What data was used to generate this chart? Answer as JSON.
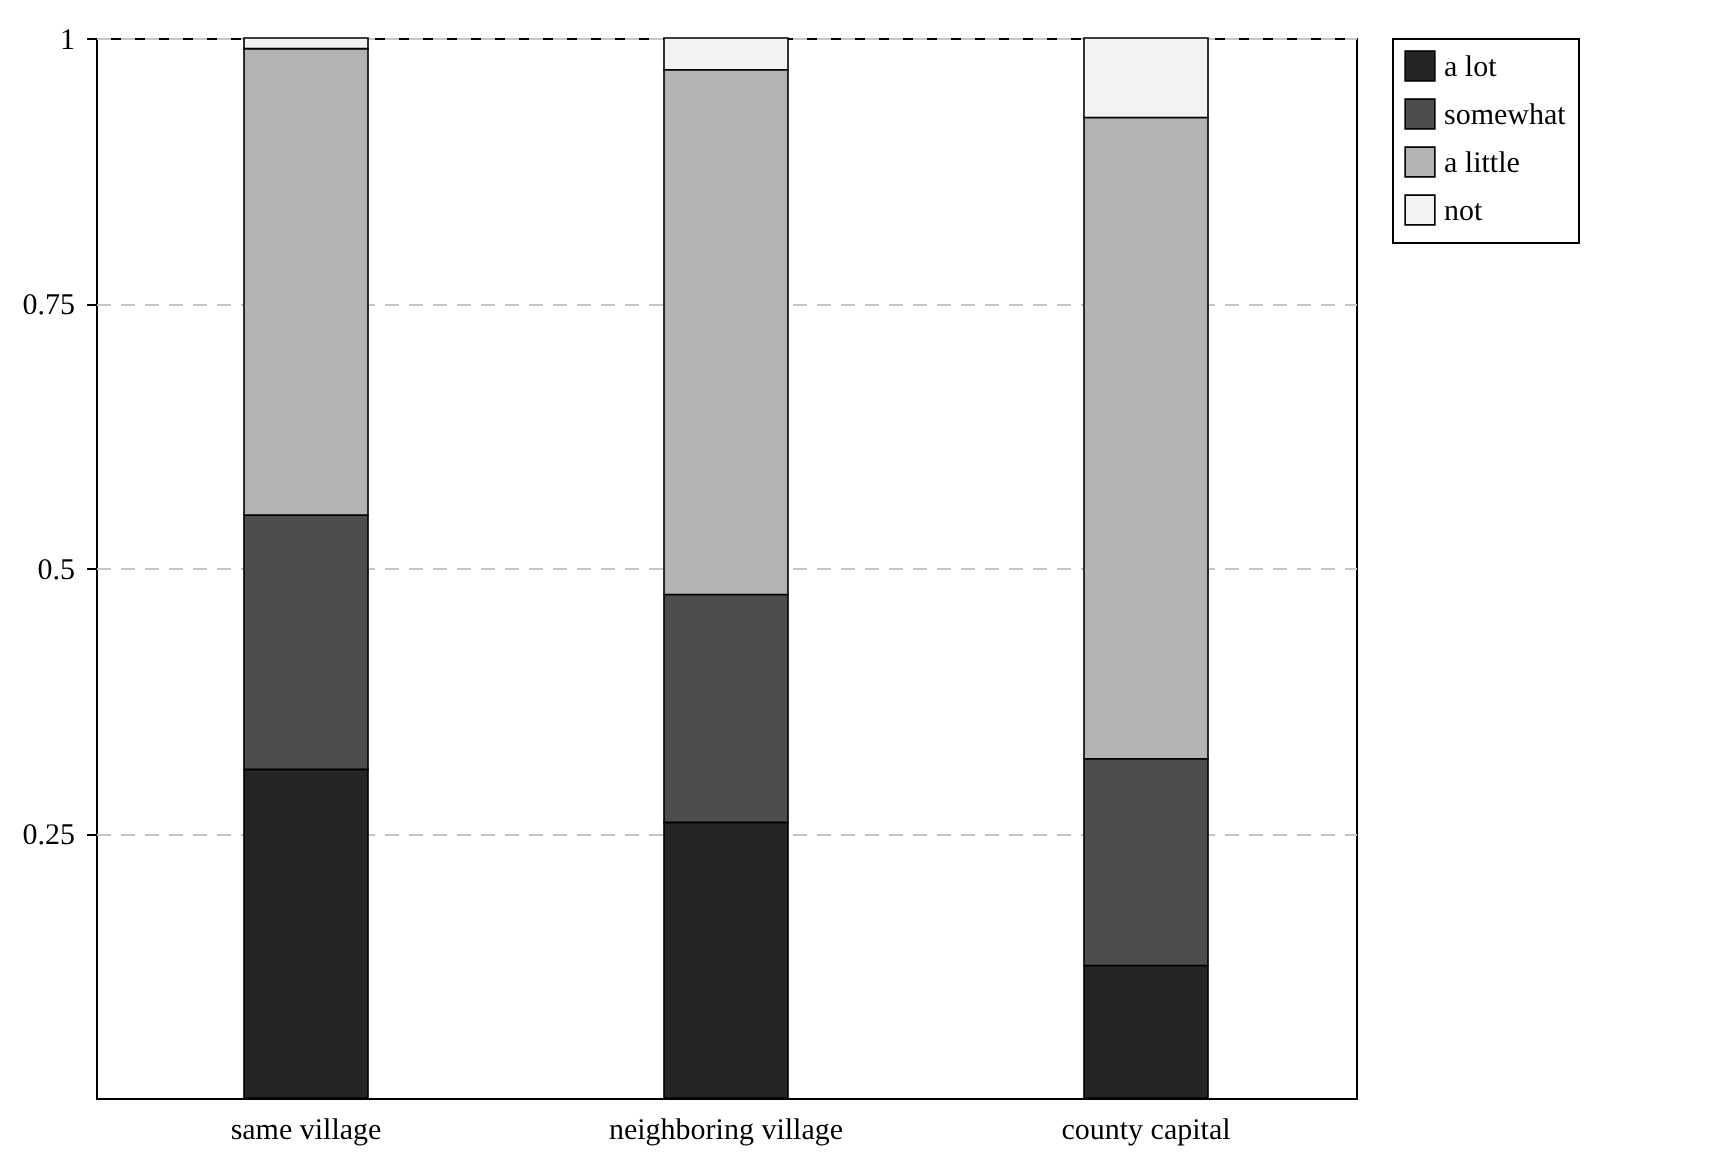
{
  "chart_data": {
    "type": "bar",
    "stacked": true,
    "categories": [
      "same village",
      "neighboring village",
      "county capital"
    ],
    "series": [
      {
        "name": "a lot",
        "color": "#252525",
        "values": [
          0.31,
          0.26,
          0.125
        ]
      },
      {
        "name": "somewhat",
        "color": "#4d4d4d",
        "values": [
          0.24,
          0.215,
          0.195
        ]
      },
      {
        "name": "a little",
        "color": "#b3b3b3",
        "values": [
          0.44,
          0.495,
          0.605
        ]
      },
      {
        "name": "not",
        "color": "#f2f2f2",
        "values": [
          0.01,
          0.03,
          0.075
        ]
      }
    ],
    "ylim": [
      0,
      1
    ],
    "yticks": [
      0.25,
      0.5,
      0.75,
      1
    ],
    "grid": "y",
    "legend": "right"
  }
}
